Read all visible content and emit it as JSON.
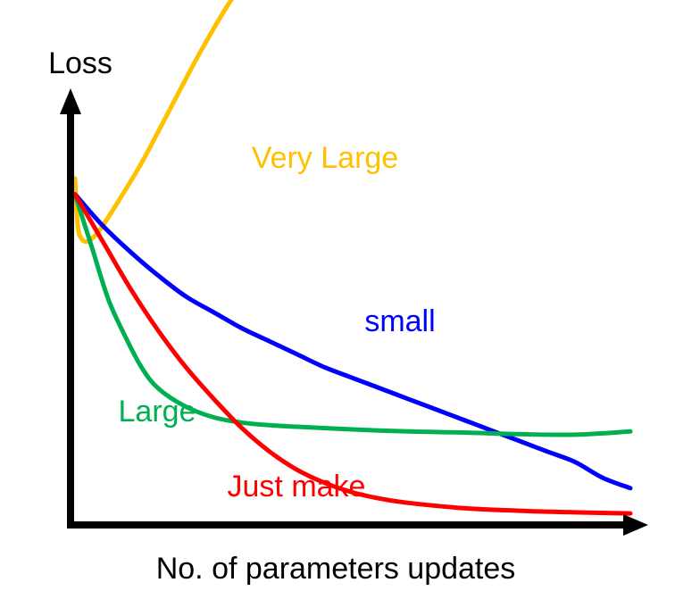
{
  "chart_data": {
    "type": "line",
    "xlabel": "No. of parameters updates",
    "ylabel": "Loss",
    "xlim": [
      0,
      10
    ],
    "ylim": [
      0,
      10
    ],
    "grid": false,
    "legend": "none",
    "series": [
      {
        "name": "Very Large",
        "color": "#FFC000",
        "x": [
          0.0,
          0.05,
          0.12,
          0.22,
          0.35,
          0.5,
          0.8,
          1.2,
          1.7,
          2.2,
          2.75,
          3.1
        ],
        "y": [
          6.6,
          5.7,
          5.45,
          5.4,
          5.5,
          5.7,
          6.2,
          6.9,
          7.9,
          8.9,
          9.9,
          10.4
        ]
      },
      {
        "name": "small",
        "color": "#0000FF",
        "x": [
          0.0,
          0.5,
          1.0,
          1.5,
          2.0,
          2.5,
          3.0,
          3.5,
          4.0,
          4.5,
          5.0,
          5.5,
          6.0,
          6.5,
          7.0,
          7.5,
          8.0,
          8.5,
          9.0,
          9.5,
          10.0
        ],
        "y": [
          6.3,
          5.7,
          5.2,
          4.75,
          4.35,
          4.05,
          3.75,
          3.5,
          3.25,
          3.0,
          2.8,
          2.6,
          2.4,
          2.2,
          2.0,
          1.8,
          1.6,
          1.4,
          1.2,
          0.9,
          0.7
        ]
      },
      {
        "name": "Large",
        "color": "#00B050",
        "x": [
          0.0,
          0.3,
          0.6,
          0.9,
          1.2,
          1.5,
          2.0,
          2.5,
          3.0,
          3.5,
          4.0,
          5.0,
          6.0,
          7.0,
          8.0,
          9.0,
          10.0
        ],
        "y": [
          6.3,
          5.3,
          4.3,
          3.6,
          3.0,
          2.6,
          2.25,
          2.05,
          1.95,
          1.9,
          1.87,
          1.82,
          1.78,
          1.76,
          1.73,
          1.72,
          1.78
        ]
      },
      {
        "name": "Just make",
        "color": "#FF0000",
        "x": [
          0.0,
          0.5,
          1.0,
          1.5,
          2.0,
          2.5,
          3.0,
          3.5,
          4.0,
          4.5,
          5.0,
          5.5,
          6.0,
          7.0,
          8.0,
          9.0,
          10.0
        ],
        "y": [
          6.3,
          5.4,
          4.5,
          3.7,
          3.0,
          2.4,
          1.85,
          1.4,
          1.05,
          0.8,
          0.62,
          0.5,
          0.42,
          0.32,
          0.27,
          0.24,
          0.22
        ]
      }
    ]
  }
}
